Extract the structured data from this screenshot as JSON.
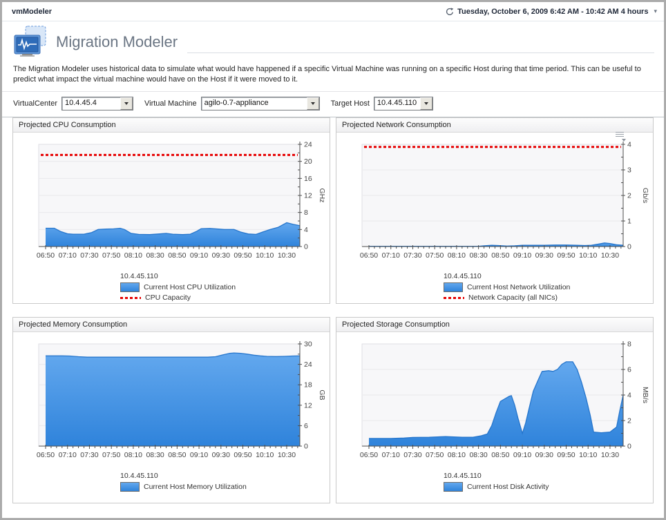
{
  "window": {
    "app_title": "vmModeler",
    "time_range": "Tuesday, October 6, 2009 6:42 AM - 10:42 AM 4 hours"
  },
  "icons": {
    "time_refresh_icon": "clock-refresh",
    "dropdown_caret": "▾",
    "chart_options_icon": "list-menu-with-caret",
    "logo_icon": "dual-monitor-waveform"
  },
  "page": {
    "title": "Migration Modeler",
    "description": "The Migration Modeler uses historical data to simulate what would have happened if a specific Virtual Machine was running on a specific Host during that time period. This can be useful to predict what impact the virtual machine would have on the Host if it were moved to it."
  },
  "filters": {
    "virtualcenter": {
      "label": "VirtualCenter",
      "value": "10.4.45.4"
    },
    "virtual_machine": {
      "label": "Virtual Machine",
      "value": "agilo-0.7-appliance"
    },
    "target_host": {
      "label": "Target Host",
      "value": "10.4.45.110"
    }
  },
  "colors": {
    "series_blue": "#3E94E9",
    "series_blue_stroke": "#2575CC",
    "capacity_red": "#E60000",
    "plot_bg": "#F7F7F9",
    "grid": "#E8E8EC",
    "axis": "#4D4D4D"
  },
  "chart_data": [
    {
      "type": "area",
      "title": "Projected CPU Consumption",
      "ylabel": "GHz",
      "ylim": [
        0,
        24
      ],
      "y_major_step": 4,
      "y_minor_step": 2,
      "x_span_minutes": 232,
      "x_tick_labels": [
        "06:50",
        "07:10",
        "07:30",
        "07:50",
        "08:10",
        "08:30",
        "08:50",
        "09:10",
        "09:30",
        "09:50",
        "10:10",
        "10:30"
      ],
      "series_host": "10.4.45.110",
      "legend_position": "bottom",
      "grid": true,
      "menu_icon": false,
      "series": [
        {
          "name": "Current Host CPU Utilization",
          "type": "area",
          "points": [
            [
              0,
              4.3
            ],
            [
              8,
              4.3
            ],
            [
              14,
              3.5
            ],
            [
              20,
              3.0
            ],
            [
              25,
              2.9
            ],
            [
              35,
              2.9
            ],
            [
              42,
              3.3
            ],
            [
              48,
              4.0
            ],
            [
              55,
              4.1
            ],
            [
              62,
              4.15
            ],
            [
              68,
              4.3
            ],
            [
              72,
              4.0
            ],
            [
              78,
              3.1
            ],
            [
              85,
              2.85
            ],
            [
              95,
              2.8
            ],
            [
              103,
              2.95
            ],
            [
              110,
              3.1
            ],
            [
              116,
              2.9
            ],
            [
              125,
              2.8
            ],
            [
              132,
              2.9
            ],
            [
              138,
              3.6
            ],
            [
              142,
              4.2
            ],
            [
              150,
              4.25
            ],
            [
              158,
              4.1
            ],
            [
              163,
              4.0
            ],
            [
              172,
              4.0
            ],
            [
              178,
              3.4
            ],
            [
              185,
              2.95
            ],
            [
              192,
              2.85
            ],
            [
              198,
              3.4
            ],
            [
              205,
              4.0
            ],
            [
              212,
              4.5
            ],
            [
              220,
              5.6
            ],
            [
              226,
              5.2
            ],
            [
              232,
              4.9
            ]
          ]
        },
        {
          "name": "CPU Capacity",
          "type": "capacity-line",
          "value": 21.5
        }
      ]
    },
    {
      "type": "area",
      "title": "Projected Network Consumption",
      "ylabel": "Gb/s",
      "ylim": [
        0,
        4
      ],
      "y_major_step": 1,
      "y_minor_step": 0.5,
      "x_span_minutes": 232,
      "x_tick_labels": [
        "06:50",
        "07:10",
        "07:30",
        "07:50",
        "08:10",
        "08:30",
        "08:50",
        "09:10",
        "09:30",
        "09:50",
        "10:10",
        "10:30"
      ],
      "series_host": "10.4.45.110",
      "legend_position": "bottom",
      "grid": true,
      "menu_icon": true,
      "series": [
        {
          "name": "Current Host Network Utilization",
          "type": "area",
          "points": [
            [
              0,
              0.01
            ],
            [
              60,
              0.01
            ],
            [
              100,
              0.01
            ],
            [
              105,
              0.03
            ],
            [
              112,
              0.05
            ],
            [
              118,
              0.04
            ],
            [
              126,
              0.02
            ],
            [
              133,
              0.03
            ],
            [
              140,
              0.05
            ],
            [
              150,
              0.05
            ],
            [
              160,
              0.05
            ],
            [
              170,
              0.06
            ],
            [
              180,
              0.06
            ],
            [
              190,
              0.05
            ],
            [
              197,
              0.04
            ],
            [
              203,
              0.05
            ],
            [
              210,
              0.1
            ],
            [
              215,
              0.14
            ],
            [
              220,
              0.12
            ],
            [
              226,
              0.07
            ],
            [
              232,
              0.05
            ]
          ]
        },
        {
          "name": "Network Capacity (all NICs)",
          "type": "capacity-line",
          "value": 3.9
        }
      ]
    },
    {
      "type": "area",
      "title": "Projected Memory Consumption",
      "ylabel": "GB",
      "ylim": [
        0,
        30
      ],
      "y_major_step": 6,
      "y_minor_step": 3,
      "x_span_minutes": 232,
      "x_tick_labels": [
        "06:50",
        "07:10",
        "07:30",
        "07:50",
        "08:10",
        "08:30",
        "08:50",
        "09:10",
        "09:30",
        "09:50",
        "10:10",
        "10:30"
      ],
      "series_host": "10.4.45.110",
      "legend_position": "bottom",
      "grid": true,
      "menu_icon": false,
      "series": [
        {
          "name": "Current Host Memory Utilization",
          "type": "area",
          "points": [
            [
              0,
              26.5
            ],
            [
              15,
              26.5
            ],
            [
              22,
              26.45
            ],
            [
              30,
              26.25
            ],
            [
              38,
              26.1
            ],
            [
              70,
              26.1
            ],
            [
              100,
              26.1
            ],
            [
              130,
              26.1
            ],
            [
              148,
              26.1
            ],
            [
              155,
              26.25
            ],
            [
              162,
              26.8
            ],
            [
              168,
              27.25
            ],
            [
              172,
              27.35
            ],
            [
              178,
              27.25
            ],
            [
              184,
              27.0
            ],
            [
              190,
              26.7
            ],
            [
              196,
              26.5
            ],
            [
              202,
              26.35
            ],
            [
              210,
              26.3
            ],
            [
              218,
              26.35
            ],
            [
              225,
              26.45
            ],
            [
              232,
              26.5
            ]
          ]
        }
      ]
    },
    {
      "type": "area",
      "title": "Projected Storage Consumption",
      "ylabel": "MB/s",
      "ylim": [
        0,
        8
      ],
      "y_major_step": 2,
      "y_minor_step": 1,
      "x_span_minutes": 232,
      "x_tick_labels": [
        "06:50",
        "07:10",
        "07:30",
        "07:50",
        "08:10",
        "08:30",
        "08:50",
        "09:10",
        "09:30",
        "09:50",
        "10:10",
        "10:30"
      ],
      "series_host": "10.4.45.110",
      "legend_position": "bottom",
      "grid": true,
      "menu_icon": false,
      "series": [
        {
          "name": "Current Host Disk Activity",
          "type": "area",
          "points": [
            [
              0,
              0.6
            ],
            [
              20,
              0.6
            ],
            [
              32,
              0.63
            ],
            [
              40,
              0.68
            ],
            [
              55,
              0.7
            ],
            [
              70,
              0.75
            ],
            [
              85,
              0.7
            ],
            [
              95,
              0.7
            ],
            [
              102,
              0.8
            ],
            [
              108,
              0.95
            ],
            [
              112,
              1.6
            ],
            [
              116,
              2.6
            ],
            [
              120,
              3.5
            ],
            [
              124,
              3.7
            ],
            [
              128,
              3.9
            ],
            [
              130,
              3.95
            ],
            [
              133,
              3.2
            ],
            [
              136,
              2.2
            ],
            [
              140,
              1.0
            ],
            [
              143,
              1.8
            ],
            [
              146,
              2.9
            ],
            [
              150,
              4.3
            ],
            [
              154,
              5.1
            ],
            [
              158,
              5.85
            ],
            [
              164,
              5.9
            ],
            [
              168,
              5.85
            ],
            [
              172,
              6.0
            ],
            [
              176,
              6.4
            ],
            [
              180,
              6.6
            ],
            [
              186,
              6.6
            ],
            [
              190,
              6.0
            ],
            [
              194,
              5.0
            ],
            [
              198,
              3.8
            ],
            [
              202,
              2.4
            ],
            [
              205,
              1.1
            ],
            [
              212,
              1.05
            ],
            [
              220,
              1.1
            ],
            [
              226,
              1.5
            ],
            [
              229,
              2.8
            ],
            [
              232,
              4.0
            ]
          ]
        }
      ]
    }
  ]
}
